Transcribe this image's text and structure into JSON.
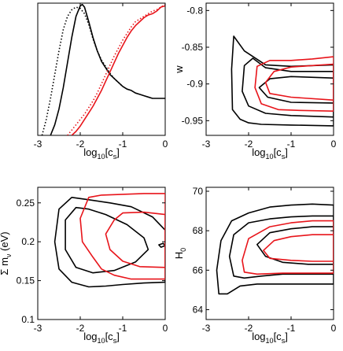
{
  "colors": {
    "black": "#000000",
    "red": "#e8141a"
  },
  "chart_data": [
    {
      "type": "line",
      "id": "p1",
      "xlabel": "log10[cs]",
      "ylabel": "",
      "xlim": [
        -3,
        0
      ],
      "ylim": [
        0,
        1
      ],
      "xticks": [
        "-3",
        "-2",
        "-1",
        "0"
      ],
      "yticks": [],
      "grid": false,
      "series": [
        {
          "color": "#000000",
          "style": "solid",
          "x": [
            -2.7,
            -2.6,
            -2.5,
            -2.4,
            -2.3,
            -2.2,
            -2.1,
            -2.0,
            -1.95,
            -1.9,
            -1.8,
            -1.7,
            -1.6,
            -1.5,
            -1.4,
            -1.3,
            -1.2,
            -1.1,
            -1.0,
            -0.9,
            -0.8,
            -0.7,
            -0.6,
            -0.5,
            -0.4,
            -0.3,
            -0.2,
            -0.1,
            0
          ],
          "y": [
            0.0,
            0.08,
            0.2,
            0.36,
            0.55,
            0.74,
            0.9,
            0.98,
            0.99,
            0.97,
            0.86,
            0.74,
            0.64,
            0.56,
            0.51,
            0.46,
            0.43,
            0.4,
            0.37,
            0.35,
            0.34,
            0.32,
            0.31,
            0.3,
            0.29,
            0.28,
            0.28,
            0.28,
            0.28
          ]
        },
        {
          "color": "#000000",
          "style": "dotted",
          "x": [
            -2.9,
            -2.8,
            -2.7,
            -2.6,
            -2.5,
            -2.4,
            -2.3,
            -2.2,
            -2.1,
            -2.0,
            -1.9,
            -1.8,
            -1.7,
            -1.6,
            -1.5,
            -1.4,
            -1.3,
            -1.2,
            -1.1,
            -1.0
          ],
          "y": [
            0.0,
            0.12,
            0.28,
            0.46,
            0.64,
            0.8,
            0.9,
            0.95,
            0.97,
            0.96,
            0.92,
            0.84,
            0.73,
            0.64,
            0.57,
            0.52,
            0.47,
            0.43,
            0.4,
            0.37
          ]
        },
        {
          "color": "#e8141a",
          "style": "solid",
          "x": [
            -2.2,
            -2.1,
            -2.0,
            -1.9,
            -1.8,
            -1.7,
            -1.6,
            -1.5,
            -1.4,
            -1.3,
            -1.2,
            -1.1,
            -1.0,
            -0.9,
            -0.8,
            -0.7,
            -0.6,
            -0.5,
            -0.4,
            -0.3,
            -0.2,
            -0.1,
            0
          ],
          "y": [
            0.0,
            0.03,
            0.07,
            0.12,
            0.17,
            0.22,
            0.28,
            0.34,
            0.41,
            0.48,
            0.55,
            0.62,
            0.68,
            0.74,
            0.79,
            0.83,
            0.86,
            0.89,
            0.91,
            0.92,
            0.94,
            0.97,
            0.98
          ]
        },
        {
          "color": "#e8141a",
          "style": "dotted",
          "x": [
            -2.3,
            -2.2,
            -2.1,
            -2.0,
            -1.9,
            -1.8,
            -1.7,
            -1.6,
            -1.5,
            -1.4,
            -1.3,
            -1.2,
            -1.1,
            -1.0,
            -0.9,
            -0.8,
            -0.7,
            -0.6,
            -0.5,
            -0.4,
            -0.3,
            -0.2,
            -0.1,
            0
          ],
          "y": [
            0.0,
            0.04,
            0.08,
            0.12,
            0.16,
            0.21,
            0.26,
            0.32,
            0.39,
            0.46,
            0.53,
            0.6,
            0.66,
            0.72,
            0.77,
            0.82,
            0.86,
            0.88,
            0.9,
            0.92,
            0.94,
            0.95,
            0.97,
            0.99
          ]
        }
      ]
    },
    {
      "type": "line",
      "id": "p2",
      "xlabel": "log10[cs]",
      "ylabel": "w",
      "xlim": [
        -3,
        0
      ],
      "ylim": [
        -0.97,
        -0.79
      ],
      "xticks": [
        "-3",
        "-2",
        "-1",
        "0"
      ],
      "yticks": [
        "-0.8",
        "-0.85",
        "-0.9",
        "-0.95"
      ],
      "ytick_values": [
        -0.8,
        -0.85,
        -0.9,
        -0.95
      ],
      "grid": false,
      "series": [
        {
          "color": "#000000",
          "style": "solid",
          "closed": true,
          "x": [
            0,
            -1,
            -1.6,
            -2.1,
            -2.35,
            -2.4,
            -2.38,
            -2.2,
            -2.0,
            -1.7,
            -1.0,
            0
          ],
          "y": [
            -0.874,
            -0.876,
            -0.874,
            -0.855,
            -0.835,
            -0.88,
            -0.935,
            -0.948,
            -0.953,
            -0.955,
            -0.956,
            -0.957
          ]
        },
        {
          "color": "#000000",
          "style": "solid",
          "closed": true,
          "x": [
            0,
            -1,
            -1.6,
            -1.9,
            -2.1,
            -2.15,
            -2.0,
            -1.6,
            -1.0,
            0
          ],
          "y": [
            -0.883,
            -0.883,
            -0.878,
            -0.865,
            -0.875,
            -0.91,
            -0.93,
            -0.94,
            -0.943,
            -0.945
          ]
        },
        {
          "color": "#000000",
          "style": "solid",
          "closed": true,
          "x": [
            0,
            -1,
            -1.5,
            -1.75,
            -1.55,
            -1.0,
            0
          ],
          "y": [
            -0.892,
            -0.89,
            -0.893,
            -0.905,
            -0.918,
            -0.925,
            -0.926
          ]
        },
        {
          "color": "#e8141a",
          "style": "solid",
          "closed": true,
          "x": [
            0,
            -0.5,
            -1,
            -1.5,
            -1.8,
            -1.85,
            -1.7,
            -1.3,
            -0.8,
            0
          ],
          "y": [
            -0.863,
            -0.866,
            -0.868,
            -0.868,
            -0.876,
            -0.905,
            -0.927,
            -0.935,
            -0.936,
            -0.937
          ]
        },
        {
          "color": "#e8141a",
          "style": "solid",
          "closed": true,
          "x": [
            0,
            -0.5,
            -1,
            -1.4,
            -1.6,
            -1.5,
            -1.0,
            0
          ],
          "y": [
            -0.873,
            -0.875,
            -0.877,
            -0.883,
            -0.898,
            -0.913,
            -0.918,
            -0.922
          ]
        }
      ]
    },
    {
      "type": "line",
      "id": "p3",
      "xlabel": "log10[cs]",
      "ylabel": "Σ mν (eV)",
      "xlim": [
        -3,
        0
      ],
      "ylim": [
        0.1,
        0.27
      ],
      "xticks": [
        "-3",
        "-2",
        "-1",
        "0"
      ],
      "yticks": [
        "0.25",
        "0.2",
        "0.15",
        "0.1"
      ],
      "ytick_values": [
        0.25,
        0.2,
        0.15,
        0.1
      ],
      "grid": false,
      "series": [
        {
          "color": "#000000",
          "style": "solid",
          "closed": true,
          "x": [
            -2.2,
            -2.5,
            -2.6,
            -2.5,
            -2.2,
            -1.8,
            -1.4,
            -1.0,
            -0.5,
            0,
            0,
            -0.3,
            -0.8,
            -1.3,
            -1.8,
            -2.2
          ],
          "y": [
            0.257,
            0.242,
            0.2,
            0.165,
            0.148,
            0.142,
            0.143,
            0.145,
            0.147,
            0.148,
            0.215,
            0.232,
            0.245,
            0.25,
            0.254,
            0.257
          ]
        },
        {
          "color": "#000000",
          "style": "solid",
          "closed": true,
          "x": [
            -2.1,
            -2.35,
            -2.35,
            -2.1,
            -1.7,
            -1.2,
            -0.7,
            -0.4,
            -0.5,
            -0.9,
            -1.4,
            -1.8,
            -2.1
          ],
          "y": [
            0.244,
            0.228,
            0.19,
            0.167,
            0.16,
            0.163,
            0.174,
            0.19,
            0.205,
            0.222,
            0.235,
            0.242,
            0.244
          ]
        },
        {
          "color": "#000000",
          "style": "solid",
          "closed": true,
          "x": [
            -0.1,
            -0.15,
            -0.05,
            0
          ],
          "y": [
            0.193,
            0.196,
            0.198,
            0.195
          ]
        },
        {
          "color": "#e8141a",
          "style": "solid",
          "closed": true,
          "x": [
            -1.8,
            -2.0,
            -1.95,
            -1.7,
            -1.5,
            -1.2,
            -0.8,
            -0.3,
            0,
            0,
            -0.5,
            -1.0,
            -1.5,
            -1.8
          ],
          "y": [
            0.257,
            0.23,
            0.2,
            0.18,
            0.165,
            0.157,
            0.152,
            0.152,
            0.152,
            0.262,
            0.262,
            0.261,
            0.26,
            0.257
          ]
        },
        {
          "color": "#e8141a",
          "style": "solid",
          "closed": true,
          "x": [
            -1.2,
            -1.4,
            -1.3,
            -1.0,
            -0.6,
            0,
            0,
            -0.5,
            -1.0,
            -1.2
          ],
          "y": [
            0.228,
            0.21,
            0.19,
            0.175,
            0.168,
            0.167,
            0.235,
            0.238,
            0.237,
            0.228
          ]
        }
      ]
    },
    {
      "type": "line",
      "id": "p4",
      "xlabel": "log10[cs]",
      "ylabel": "H0",
      "xlim": [
        -3,
        0
      ],
      "ylim": [
        63.5,
        70.2
      ],
      "xticks": [
        "-3",
        "-2",
        "-1",
        "0"
      ],
      "yticks": [
        "70",
        "68",
        "66",
        "64"
      ],
      "ytick_values": [
        70,
        68,
        66,
        64
      ],
      "grid": false,
      "series": [
        {
          "color": "#000000",
          "style": "solid",
          "closed": true,
          "x": [
            0,
            -0.5,
            -1,
            -1.5,
            -2.0,
            -2.4,
            -2.65,
            -2.75,
            -2.7,
            -2.5,
            -2.2,
            -1.8,
            -1.3,
            -0.7,
            0
          ],
          "y": [
            69.3,
            69.35,
            69.3,
            69.2,
            68.9,
            68.5,
            67.5,
            66.0,
            64.8,
            64.8,
            65.2,
            65.3,
            65.3,
            65.3,
            65.3
          ]
        },
        {
          "color": "#000000",
          "style": "solid",
          "closed": true,
          "x": [
            0,
            -0.5,
            -1,
            -1.5,
            -2.0,
            -2.35,
            -2.45,
            -2.35,
            -2.1,
            -1.7,
            -1.2,
            -0.6,
            0
          ],
          "y": [
            68.75,
            68.75,
            68.7,
            68.6,
            68.4,
            67.8,
            66.7,
            65.7,
            65.6,
            65.7,
            65.8,
            65.8,
            65.8
          ]
        },
        {
          "color": "#000000",
          "style": "solid",
          "closed": true,
          "x": [
            0,
            -0.5,
            -1,
            -1.5,
            -1.8,
            -1.6,
            -1.2,
            -0.6,
            0
          ],
          "y": [
            68.2,
            68.2,
            68.1,
            67.9,
            67.3,
            66.7,
            66.4,
            66.3,
            66.3
          ]
        },
        {
          "color": "#e8141a",
          "style": "solid",
          "closed": true,
          "x": [
            0,
            -0.5,
            -1,
            -1.5,
            -2.0,
            -2.15,
            -2.1,
            -1.8,
            -1.2,
            -0.6,
            0
          ],
          "y": [
            68.5,
            68.5,
            68.4,
            68.2,
            67.6,
            66.5,
            65.9,
            65.8,
            65.85,
            65.85,
            65.85
          ]
        },
        {
          "color": "#e8141a",
          "style": "solid",
          "closed": true,
          "x": [
            0,
            -0.5,
            -1,
            -1.4,
            -1.65,
            -1.5,
            -1.0,
            -0.5,
            0
          ],
          "y": [
            67.8,
            67.8,
            67.7,
            67.5,
            67.0,
            66.6,
            66.5,
            66.45,
            66.45
          ]
        }
      ]
    }
  ]
}
